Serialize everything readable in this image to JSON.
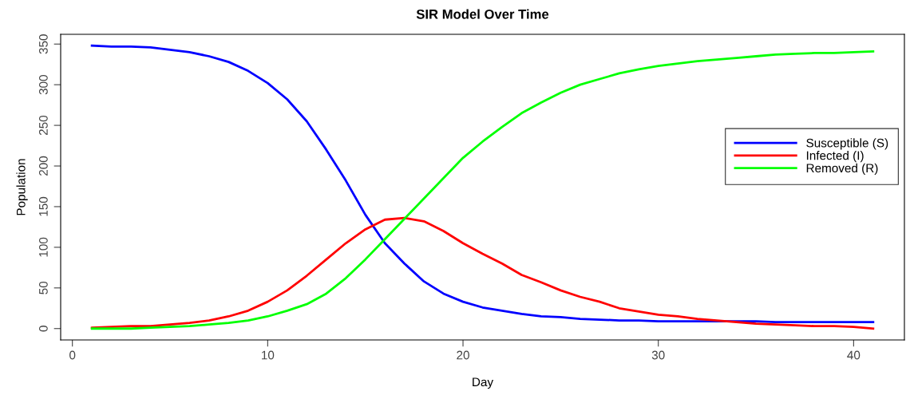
{
  "chart_data": {
    "type": "line",
    "title": "SIR Model Over Time",
    "xlabel": "Day",
    "ylabel": "Population",
    "x": [
      1,
      2,
      3,
      4,
      5,
      6,
      7,
      8,
      9,
      10,
      11,
      12,
      13,
      14,
      15,
      16,
      17,
      18,
      19,
      20,
      21,
      22,
      23,
      24,
      25,
      26,
      27,
      28,
      29,
      30,
      31,
      32,
      33,
      34,
      35,
      36,
      37,
      38,
      39,
      40,
      41
    ],
    "series": [
      {
        "name": "Susceptible (S)",
        "color": "#0000ff",
        "values": [
          348,
          347,
          347,
          346,
          343,
          340,
          335,
          328,
          317,
          302,
          282,
          255,
          220,
          182,
          140,
          105,
          80,
          58,
          43,
          33,
          26,
          22,
          18,
          15,
          14,
          12,
          11,
          10,
          10,
          9,
          9,
          9,
          9,
          9,
          9,
          8,
          8,
          8,
          8,
          8,
          8
        ]
      },
      {
        "name": "Infected (I)",
        "color": "#ff0000",
        "values": [
          1,
          2,
          3,
          3,
          5,
          7,
          10,
          15,
          22,
          33,
          47,
          65,
          85,
          105,
          122,
          134,
          136,
          132,
          120,
          105,
          92,
          80,
          66,
          57,
          47,
          39,
          33,
          25,
          21,
          17,
          15,
          12,
          10,
          8,
          6,
          5,
          4,
          3,
          3,
          2,
          0
        ]
      },
      {
        "name": "Removed (R)",
        "color": "#00ff00",
        "values": [
          0,
          0,
          0,
          1,
          2,
          3,
          5,
          7,
          10,
          15,
          22,
          30,
          43,
          62,
          85,
          110,
          135,
          160,
          185,
          210,
          230,
          248,
          265,
          278,
          290,
          300,
          307,
          314,
          319,
          323,
          326,
          329,
          331,
          333,
          335,
          337,
          338,
          339,
          339,
          340,
          341
        ]
      }
    ],
    "xlim": [
      -0.6,
      42.6
    ],
    "ylim": [
      -14,
      362
    ],
    "xticks": [
      0,
      10,
      20,
      30,
      40
    ],
    "yticks": [
      0,
      50,
      100,
      150,
      200,
      250,
      300,
      350
    ],
    "legend": "right",
    "grid": false,
    "line_style": "solid",
    "marker": "none"
  }
}
